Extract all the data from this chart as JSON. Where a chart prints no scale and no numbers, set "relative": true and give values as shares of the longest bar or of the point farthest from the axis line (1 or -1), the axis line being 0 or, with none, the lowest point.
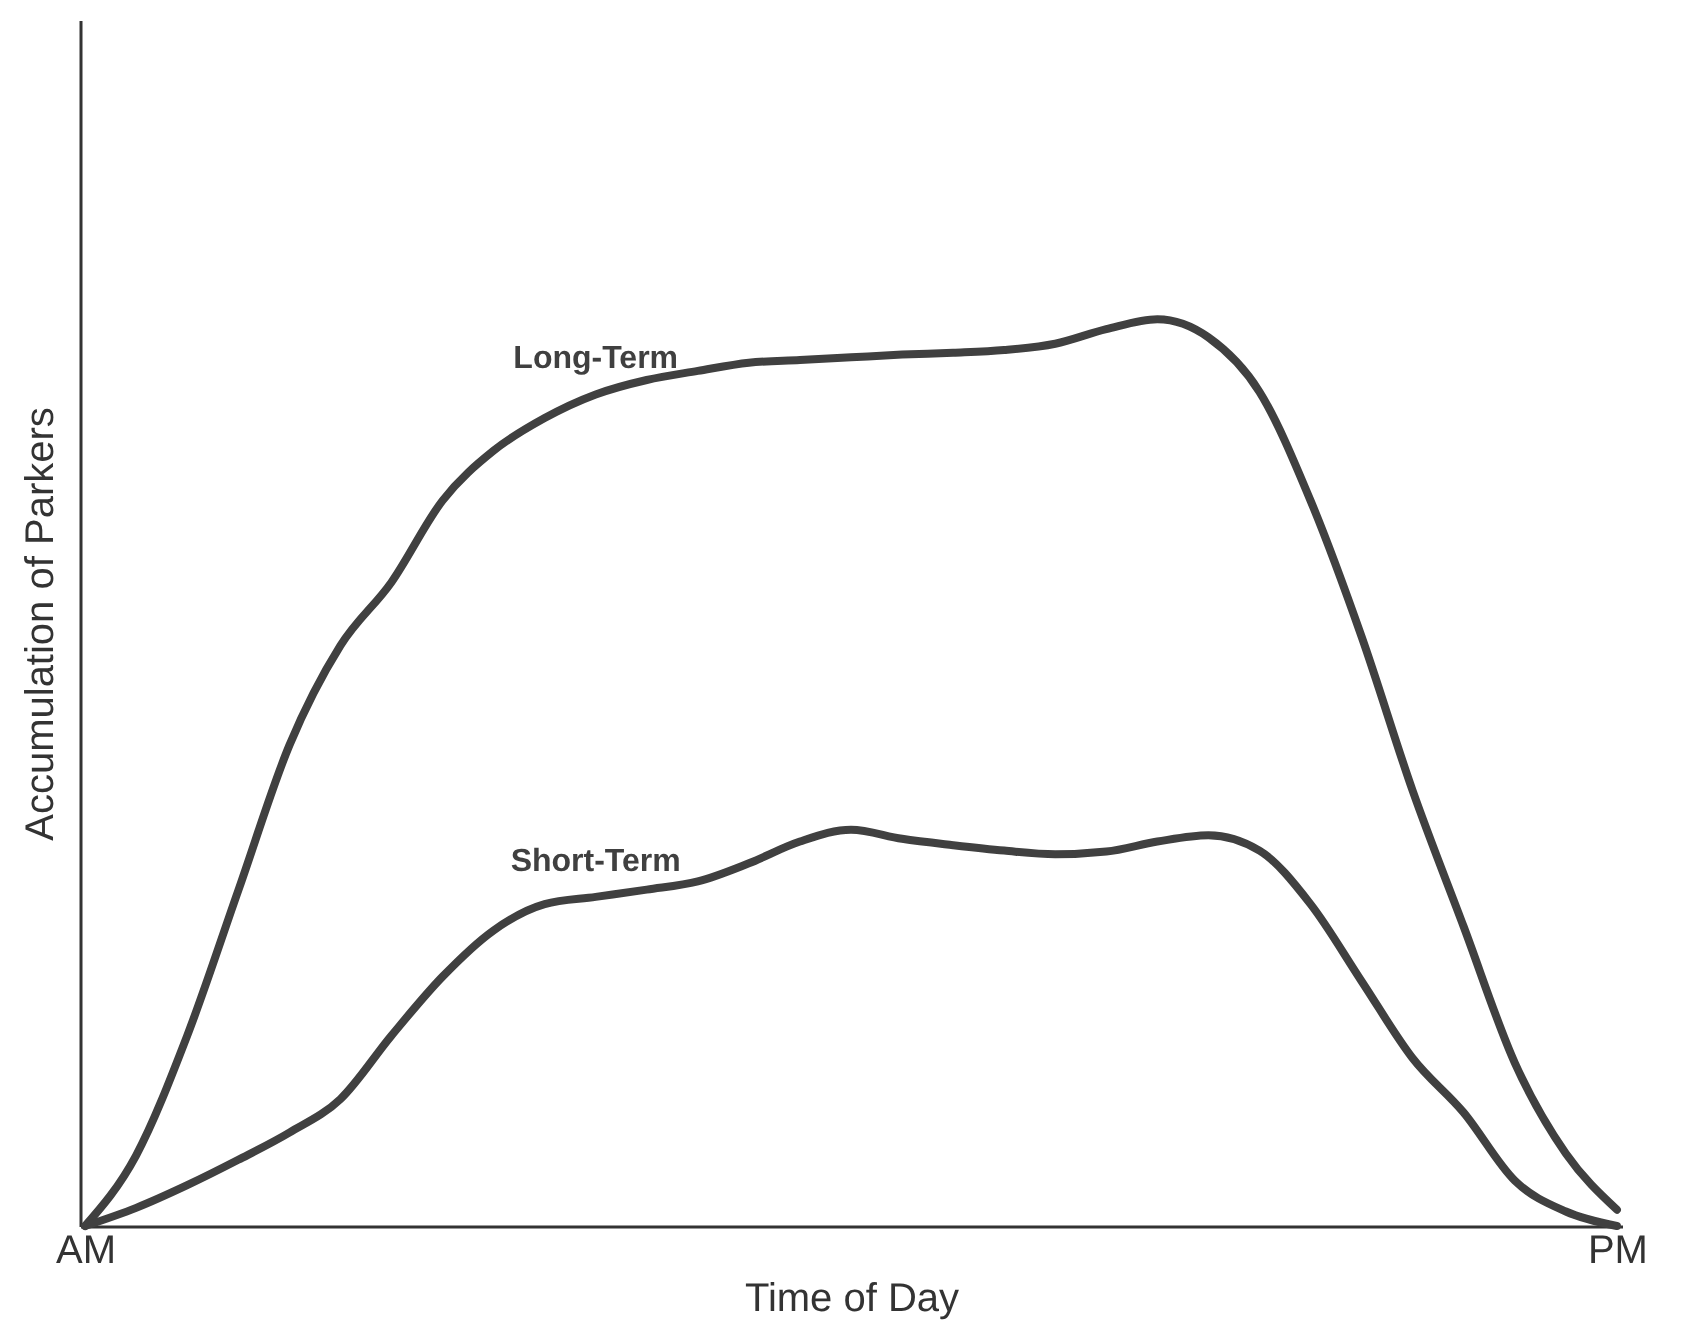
{
  "chart_data": {
    "type": "line",
    "xlabel": "Time of Day",
    "ylabel": "Accumulation of Parkers",
    "relative": true,
    "categories": [
      "AM",
      null,
      null,
      null,
      null,
      null,
      null,
      null,
      null,
      null,
      null,
      null,
      null,
      null,
      null,
      null,
      null,
      null,
      null,
      null,
      null,
      null,
      null,
      null,
      null,
      null,
      null,
      null,
      null,
      null,
      "PM"
    ],
    "series": [
      {
        "name": "Long-Term",
        "color": "#404040",
        "values": [
          0,
          0.078,
          0.21,
          0.37,
          0.53,
          0.64,
          0.71,
          0.8,
          0.855,
          0.891,
          0.917,
          0.933,
          0.943,
          0.952,
          0.955,
          0.958,
          0.961,
          0.963,
          0.966,
          0.973,
          0.989,
          1,
          0.98,
          0.92,
          0.8,
          0.65,
          0.48,
          0.33,
          0.18,
          0.08,
          0.018
        ]
      },
      {
        "name": "Short-Term",
        "color": "#404040",
        "values": [
          0,
          0.02,
          0.045,
          0.073,
          0.103,
          0.14,
          0.21,
          0.275,
          0.326,
          0.355,
          0.363,
          0.371,
          0.38,
          0.4,
          0.424,
          0.437,
          0.427,
          0.42,
          0.414,
          0.41,
          0.413,
          0.424,
          0.431,
          0.414,
          0.355,
          0.27,
          0.185,
          0.125,
          0.05,
          0.016,
          0
        ]
      }
    ]
  }
}
